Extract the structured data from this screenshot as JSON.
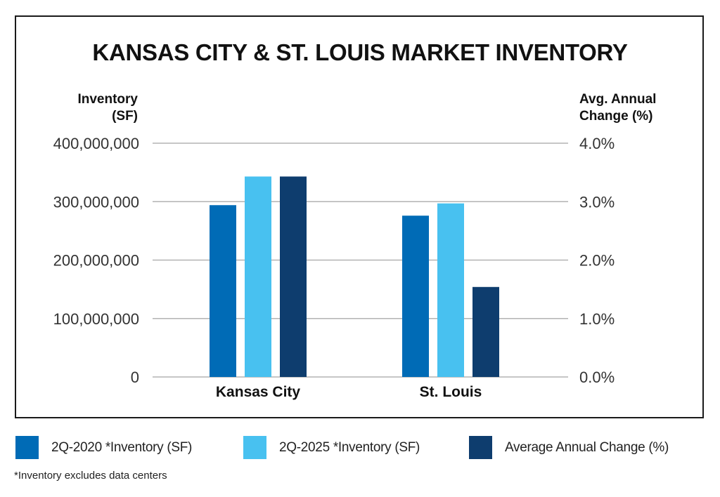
{
  "chart_data": {
    "type": "bar",
    "title": "KANSAS CITY & ST. LOUIS MARKET INVENTORY",
    "categories": [
      "Kansas City",
      "St. Louis"
    ],
    "left_axis": {
      "label_line1": "Inventory",
      "label_line2": "(SF)",
      "ylim": [
        0,
        400000000
      ],
      "ticks": [
        0,
        100000000,
        200000000,
        300000000,
        400000000
      ],
      "tick_labels": [
        "0",
        "100,000,000",
        "200,000,000",
        "300,000,000",
        "400,000,000"
      ]
    },
    "right_axis": {
      "label_line1": "Avg. Annual",
      "label_line2": "Change (%)",
      "ylim": [
        0,
        4.0
      ],
      "ticks": [
        0,
        1,
        2,
        3,
        4
      ],
      "tick_labels": [
        "0.0%",
        "1.0%",
        "2.0%",
        "3.0%",
        "4.0%"
      ]
    },
    "series": [
      {
        "name": "2Q-2020 *Inventory (SF)",
        "axis": "left",
        "color": "#006bb6",
        "values": [
          294000000,
          276000000
        ]
      },
      {
        "name": "2Q-2025 *Inventory (SF)",
        "axis": "left",
        "color": "#48c1f0",
        "values": [
          343000000,
          297000000
        ]
      },
      {
        "name": "Average Annual Change (%)",
        "axis": "right",
        "color": "#0e3d6e",
        "values": [
          3.43,
          1.54
        ]
      }
    ],
    "grid": true,
    "legend_position": "bottom",
    "footnote": "*Inventory excludes data centers"
  }
}
